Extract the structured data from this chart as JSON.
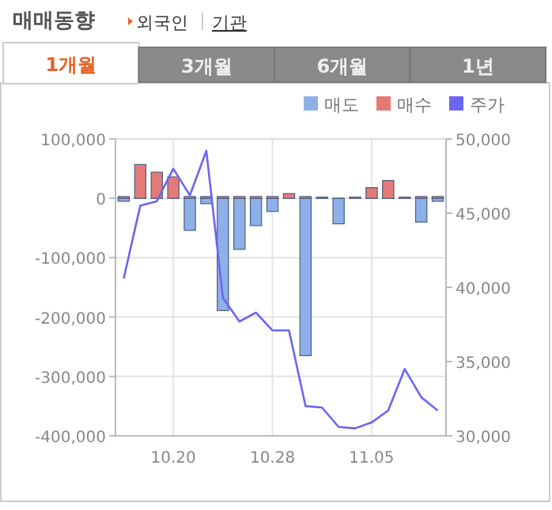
{
  "chart_data": {
    "type": "bar",
    "title": "매매동향",
    "annotations": [
      "외국인",
      "기관",
      "1개월",
      "3개월",
      "6개월",
      "1년"
    ],
    "categories": [
      null,
      null,
      null,
      "10.20",
      null,
      null,
      null,
      null,
      null,
      "10.28",
      null,
      null,
      null,
      null,
      null,
      "11.05",
      null,
      null,
      null,
      null
    ],
    "stacked": true,
    "series": [
      {
        "name": "매도",
        "color": "#8eb0e8",
        "values": [
          -5000,
          0,
          0,
          0,
          -54000,
          -9000,
          -189000,
          -86000,
          -46000,
          -22000,
          0,
          -265000,
          0,
          -43000,
          0,
          0,
          0,
          0,
          -40000,
          -5000
        ]
      },
      {
        "name": "매수",
        "color": "#e47a78",
        "values": [
          3000,
          57000,
          44000,
          36000,
          3000,
          3000,
          3000,
          3000,
          3000,
          3000,
          8000,
          3000,
          2000,
          0,
          2000,
          18000,
          30000,
          2000,
          3000,
          3000
        ]
      },
      {
        "name": "주가",
        "color": "#6b66f0",
        "type": "line",
        "axis": "y2",
        "values": [
          40600,
          45500,
          45800,
          48000,
          46200,
          49200,
          39300,
          37700,
          38300,
          37100,
          37100,
          32000,
          31900,
          30600,
          30500,
          30900,
          31700,
          34500,
          32600,
          31700
        ]
      }
    ],
    "ylim": [
      -400000,
      100000
    ],
    "yticks": [
      {
        "value": 100000,
        "label": "100,000"
      },
      0,
      {
        "value": -100000,
        "label": "-100,000"
      },
      {
        "value": -200000,
        "label": "-200,000"
      },
      {
        "value": -300000,
        "label": "-300,000"
      },
      {
        "value": -400000,
        "label": "-400,000"
      }
    ],
    "y2lim": [
      30000,
      50000
    ],
    "y2ticks": [
      {
        "value": 30000,
        "label": "30,000"
      },
      {
        "value": 35000,
        "label": "35,000"
      },
      {
        "value": 40000,
        "label": "40,000"
      },
      {
        "value": 45000,
        "label": "45,000"
      },
      {
        "value": 50000,
        "label": "50,000"
      }
    ],
    "grid": true,
    "legend": "top right",
    "marker": "none"
  }
}
